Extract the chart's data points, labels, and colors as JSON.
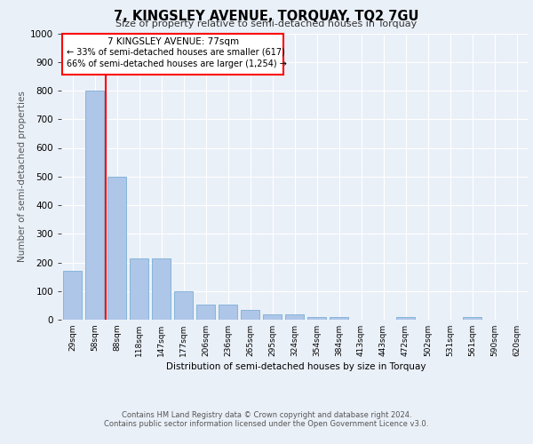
{
  "title": "7, KINGSLEY AVENUE, TORQUAY, TQ2 7GU",
  "subtitle": "Size of property relative to semi-detached houses in Torquay",
  "xlabel": "Distribution of semi-detached houses by size in Torquay",
  "ylabel": "Number of semi-detached properties",
  "categories": [
    "29sqm",
    "58sqm",
    "88sqm",
    "118sqm",
    "147sqm",
    "177sqm",
    "206sqm",
    "236sqm",
    "265sqm",
    "295sqm",
    "324sqm",
    "354sqm",
    "384sqm",
    "413sqm",
    "443sqm",
    "472sqm",
    "502sqm",
    "531sqm",
    "561sqm",
    "590sqm",
    "620sqm"
  ],
  "values": [
    170,
    800,
    500,
    215,
    215,
    100,
    52,
    52,
    35,
    20,
    18,
    10,
    10,
    0,
    0,
    10,
    0,
    0,
    10,
    0,
    0
  ],
  "bar_color": "#aec6e8",
  "bar_edge_color": "#7bafd4",
  "vline_color": "red",
  "vline_x": 1.5,
  "annotation_title": "7 KINGSLEY AVENUE: 77sqm",
  "annotation_line1": "← 33% of semi-detached houses are smaller (617)",
  "annotation_line2": "66% of semi-detached houses are larger (1,254) →",
  "annotation_box_color": "white",
  "annotation_box_edge_color": "red",
  "ylim": [
    0,
    1000
  ],
  "yticks": [
    0,
    100,
    200,
    300,
    400,
    500,
    600,
    700,
    800,
    900,
    1000
  ],
  "footer_line1": "Contains HM Land Registry data © Crown copyright and database right 2024.",
  "footer_line2": "Contains public sector information licensed under the Open Government Licence v3.0.",
  "bg_color": "#eaf0f8",
  "plot_bg_color": "#eaf0f8",
  "grid_color": "white"
}
